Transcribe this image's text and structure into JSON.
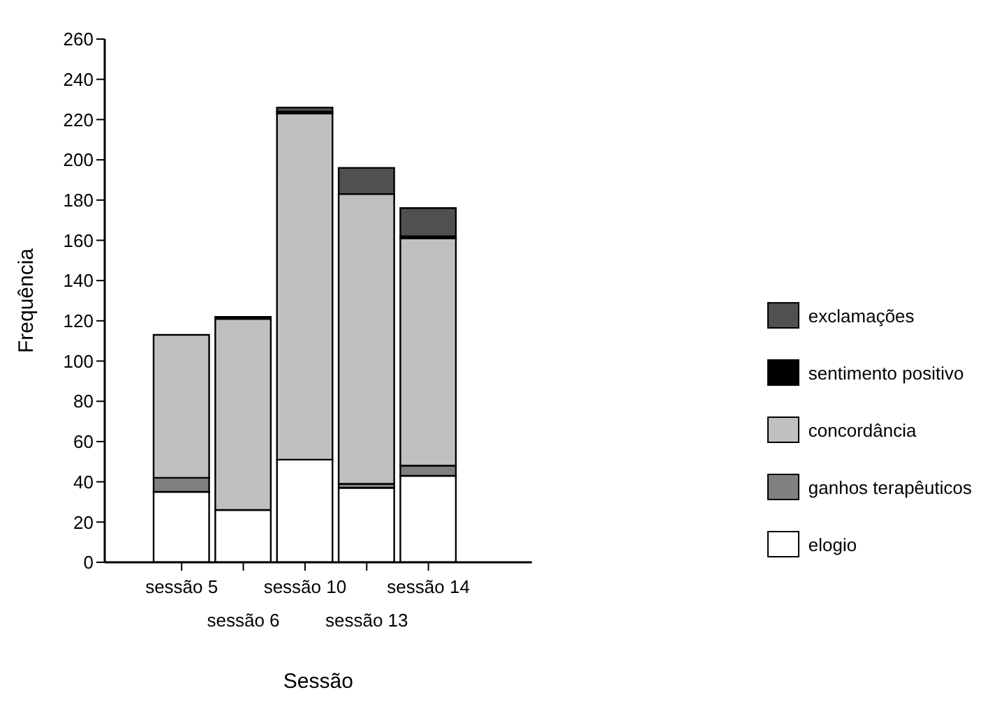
{
  "chart_data": {
    "type": "bar",
    "stacked": true,
    "xlabel": "Sessão",
    "ylabel": "Frequência",
    "categories": [
      "sessão 5",
      "sessão 6",
      "sessão 10",
      "sessão 13",
      "sessão 14"
    ],
    "series": [
      {
        "name": "elogio",
        "color": "#ffffff",
        "values": [
          35,
          26,
          51,
          37,
          43
        ]
      },
      {
        "name": "ganhos terapêuticos",
        "color": "#808080",
        "values": [
          7,
          0,
          0,
          2,
          5
        ]
      },
      {
        "name": "concordância",
        "color": "#c0c0c0",
        "values": [
          71,
          95,
          172,
          144,
          113
        ]
      },
      {
        "name": "sentimento positivo",
        "color": "#000000",
        "values": [
          0,
          1,
          1,
          0,
          1
        ]
      },
      {
        "name": "exclamações",
        "color": "#505050",
        "values": [
          0,
          0,
          2,
          13,
          14
        ]
      }
    ],
    "ylim": [
      0,
      260
    ],
    "yticks": [
      0,
      20,
      40,
      60,
      80,
      100,
      120,
      140,
      160,
      180,
      200,
      220,
      240,
      260
    ],
    "grid": false,
    "legend": "right"
  }
}
